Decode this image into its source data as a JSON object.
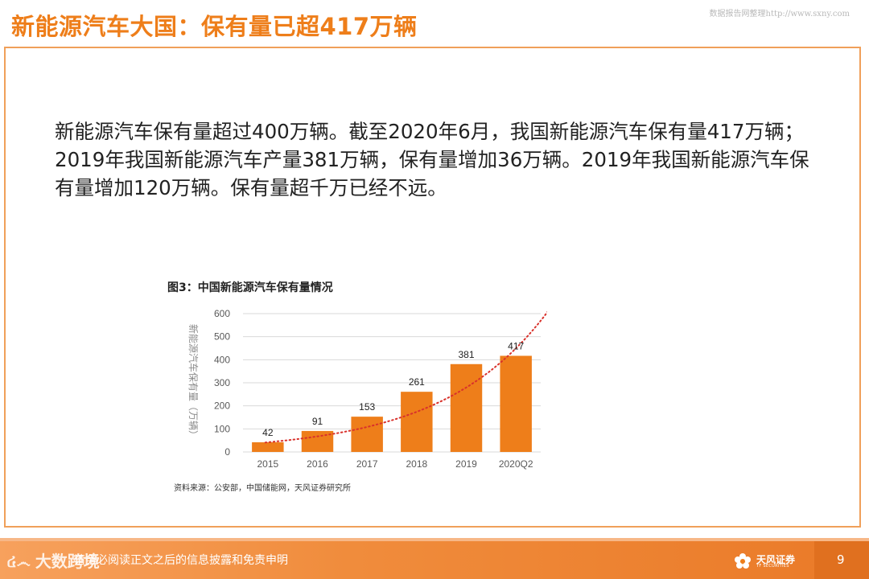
{
  "slide": {
    "title": "新能源汽车大国：保有量已超417万辆",
    "watermark_top": "数据报告网整理http://www.sxny.com",
    "paragraph": "新能源汽车保有量超过400万辆。截至2020年6月，我国新能源汽车保有量417万辆；2019年我国新能源汽车产量381万辆，保有量增加36万辆。2019年我国新能源汽车保有量增加120万辆。保有量超千万已经不远。",
    "figure_title": "图3：中国新能源汽车保有量情况",
    "source": "资料来源：公安部，中国储能网，天风证券研究所"
  },
  "footer": {
    "disclaimer": "请务必阅读正文之后的信息披露和免责申明",
    "page_number": "9",
    "watermark": "大数跨境",
    "watermark_logo": "៤෴",
    "logo_cn": "天风证券",
    "logo_en": "TF SECURITIES"
  },
  "colors": {
    "accent": "#ee7e1a",
    "bar": "#ee7e1a",
    "trend": "#d9312b",
    "grid": "#d9d9d9",
    "axis_text": "#595959"
  },
  "chart_data": {
    "type": "bar",
    "title": "图3：中国新能源汽车保有量情况",
    "categories": [
      "2015",
      "2016",
      "2017",
      "2018",
      "2019",
      "2020Q2"
    ],
    "values": [
      42,
      91,
      153,
      261,
      381,
      417
    ],
    "data_labels": [
      "42",
      "91",
      "153",
      "261",
      "381",
      "417"
    ],
    "ylabel": "新能源汽车保有量（万辆）",
    "xlabel": "",
    "ylim": [
      0,
      600
    ],
    "yticks": [
      0,
      100,
      200,
      300,
      400,
      500,
      600
    ],
    "grid": true,
    "trendline": {
      "type": "exponential",
      "style": "dotted"
    }
  }
}
